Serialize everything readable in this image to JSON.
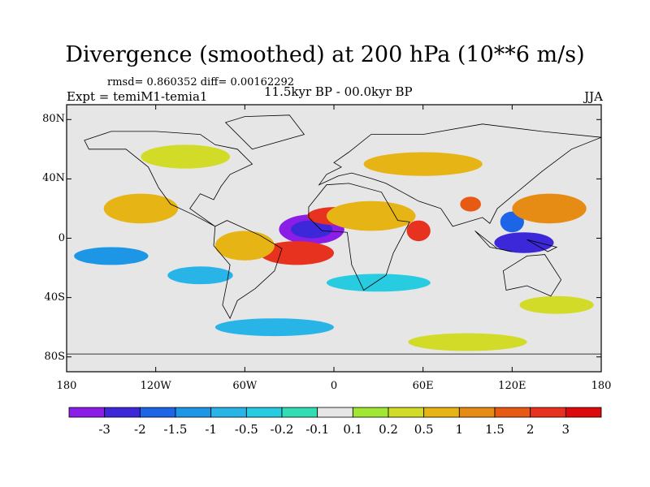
{
  "title": "Divergence (smoothed) at 200 hPa (10**6 m/s)",
  "stats_line": "rmsd= 0.860352 diff= 0.00162292",
  "left_label": "Expt = temiM1-temia1",
  "center_label": "11.5kyr BP - 00.0kyr BP",
  "right_label": "JJA",
  "colors": {
    "background_neutral": "#e6e6e6",
    "coastline": "#000000",
    "frame": "#000000"
  },
  "map": {
    "projection": "cylindrical equidistant",
    "lon_range": [
      -180,
      180
    ],
    "lat_range": [
      -90,
      90
    ],
    "y_ticks": [
      {
        "label": "80N",
        "lat": 80
      },
      {
        "label": "40N",
        "lat": 40
      },
      {
        "label": "0",
        "lat": 0
      },
      {
        "label": "40S",
        "lat": -40
      },
      {
        "label": "80S",
        "lat": -80
      }
    ],
    "x_ticks": [
      {
        "label": "180",
        "lon": -180
      },
      {
        "label": "120W",
        "lon": -120
      },
      {
        "label": "60W",
        "lon": -60
      },
      {
        "label": "0",
        "lon": 0
      },
      {
        "label": "60E",
        "lon": 60
      },
      {
        "label": "120E",
        "lon": 120
      },
      {
        "label": "180",
        "lon": 180
      }
    ]
  },
  "colorbar": {
    "colors": [
      "#8a1ee6",
      "#3c28d8",
      "#1e64e6",
      "#1e96e6",
      "#28b4e6",
      "#28cce0",
      "#32dcb4",
      "#e6e6e6",
      "#a0e632",
      "#d2dc28",
      "#e6b414",
      "#e68c14",
      "#e65a14",
      "#e6321e",
      "#dc0a0a"
    ],
    "labels": [
      "-3",
      "-2",
      "-1.5",
      "-1",
      "-0.5",
      "-0.2",
      "-0.1",
      "0.1",
      "0.2",
      "0.5",
      "1",
      "1.5",
      "2",
      "3"
    ]
  },
  "blobs": [
    {
      "lon": -15,
      "lat": 6,
      "rx": 22,
      "ry": 10,
      "level": 0
    },
    {
      "lon": -15,
      "lat": 6,
      "rx": 14,
      "ry": 6,
      "level": 1
    },
    {
      "lon": 128,
      "lat": -3,
      "rx": 20,
      "ry": 7,
      "level": 1
    },
    {
      "lon": 120,
      "lat": 11,
      "rx": 8,
      "ry": 7,
      "level": 2
    },
    {
      "lon": -25,
      "lat": -10,
      "rx": 25,
      "ry": 8,
      "level": 13
    },
    {
      "lon": 0,
      "lat": 15,
      "rx": 18,
      "ry": 6,
      "level": 13
    },
    {
      "lon": 57,
      "lat": 5,
      "rx": 8,
      "ry": 7,
      "level": 13
    },
    {
      "lon": 92,
      "lat": 23,
      "rx": 7,
      "ry": 5,
      "level": 12
    },
    {
      "lon": -130,
      "lat": 20,
      "rx": 25,
      "ry": 10,
      "level": 10
    },
    {
      "lon": -60,
      "lat": -5,
      "rx": 20,
      "ry": 10,
      "level": 10
    },
    {
      "lon": 145,
      "lat": 20,
      "rx": 25,
      "ry": 10,
      "level": 11
    },
    {
      "lon": 25,
      "lat": 15,
      "rx": 30,
      "ry": 10,
      "level": 10
    },
    {
      "lon": -150,
      "lat": -12,
      "rx": 25,
      "ry": 6,
      "level": 3
    },
    {
      "lon": -90,
      "lat": -25,
      "rx": 22,
      "ry": 6,
      "level": 4
    },
    {
      "lon": 30,
      "lat": -30,
      "rx": 35,
      "ry": 6,
      "level": 5
    },
    {
      "lon": -100,
      "lat": 55,
      "rx": 30,
      "ry": 8,
      "level": 9
    },
    {
      "lon": 60,
      "lat": 50,
      "rx": 40,
      "ry": 8,
      "level": 10
    },
    {
      "lon": 150,
      "lat": -45,
      "rx": 25,
      "ry": 6,
      "level": 9
    },
    {
      "lon": -40,
      "lat": -60,
      "rx": 40,
      "ry": 6,
      "level": 4
    },
    {
      "lon": 90,
      "lat": -70,
      "rx": 40,
      "ry": 6,
      "level": 9
    }
  ],
  "land": [
    [
      [
        -168,
        66
      ],
      [
        -150,
        72
      ],
      [
        -120,
        72
      ],
      [
        -90,
        70
      ],
      [
        -80,
        63
      ],
      [
        -65,
        60
      ],
      [
        -55,
        50
      ],
      [
        -70,
        43
      ],
      [
        -76,
        35
      ],
      [
        -81,
        26
      ],
      [
        -90,
        30
      ],
      [
        -97,
        20
      ],
      [
        -90,
        15
      ],
      [
        -80,
        8
      ],
      [
        -95,
        16
      ],
      [
        -110,
        23
      ],
      [
        -118,
        34
      ],
      [
        -125,
        48
      ],
      [
        -140,
        60
      ],
      [
        -165,
        60
      ]
    ],
    [
      [
        -80,
        8
      ],
      [
        -72,
        12
      ],
      [
        -50,
        2
      ],
      [
        -35,
        -7
      ],
      [
        -40,
        -22
      ],
      [
        -53,
        -34
      ],
      [
        -65,
        -42
      ],
      [
        -70,
        -54
      ],
      [
        -75,
        -45
      ],
      [
        -72,
        -30
      ],
      [
        -70,
        -18
      ],
      [
        -81,
        -5
      ]
    ],
    [
      [
        -17,
        21
      ],
      [
        -5,
        36
      ],
      [
        10,
        37
      ],
      [
        32,
        31
      ],
      [
        43,
        12
      ],
      [
        51,
        11
      ],
      [
        40,
        -10
      ],
      [
        35,
        -25
      ],
      [
        20,
        -35
      ],
      [
        12,
        -18
      ],
      [
        9,
        4
      ],
      [
        -8,
        5
      ],
      [
        -17,
        14
      ]
    ],
    [
      [
        -10,
        36
      ],
      [
        -5,
        43
      ],
      [
        5,
        48
      ],
      [
        0,
        51
      ],
      [
        10,
        58
      ],
      [
        25,
        70
      ],
      [
        60,
        70
      ],
      [
        100,
        77
      ],
      [
        140,
        72
      ],
      [
        180,
        68
      ],
      [
        160,
        60
      ],
      [
        140,
        45
      ],
      [
        122,
        30
      ],
      [
        110,
        20
      ],
      [
        105,
        10
      ],
      [
        100,
        14
      ],
      [
        80,
        8
      ],
      [
        72,
        20
      ],
      [
        57,
        25
      ],
      [
        48,
        30
      ],
      [
        35,
        37
      ],
      [
        26,
        40
      ],
      [
        12,
        44
      ],
      [
        3,
        42
      ]
    ],
    [
      [
        114,
        -22
      ],
      [
        130,
        -12
      ],
      [
        142,
        -11
      ],
      [
        153,
        -28
      ],
      [
        146,
        -39
      ],
      [
        130,
        -32
      ],
      [
        116,
        -35
      ]
    ],
    [
      [
        -55,
        60
      ],
      [
        -20,
        70
      ],
      [
        -30,
        83
      ],
      [
        -60,
        82
      ],
      [
        -73,
        78
      ]
    ],
    [
      [
        95,
        5
      ],
      [
        110,
        -7
      ],
      [
        120,
        -9
      ],
      [
        105,
        -6
      ]
    ],
    [
      [
        130,
        -1
      ],
      [
        150,
        -6
      ],
      [
        144,
        -9
      ]
    ],
    [
      [
        -180,
        -78
      ],
      [
        180,
        -78
      ],
      [
        180,
        -90
      ],
      [
        -180,
        -90
      ]
    ]
  ]
}
